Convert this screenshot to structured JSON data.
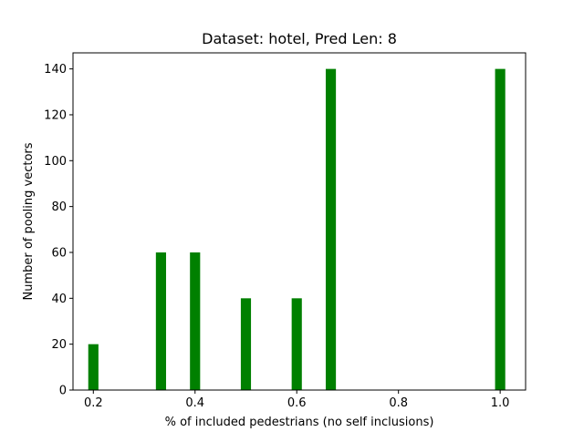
{
  "chart_data": {
    "type": "bar",
    "title": "Dataset: hotel, Pred Len: 8",
    "xlabel": "% of included pedestrians (no self inclusions)",
    "ylabel": "Number of pooling vectors",
    "x": [
      0.2,
      0.333,
      0.4,
      0.5,
      0.6,
      0.667,
      1.0
    ],
    "values": [
      20,
      60,
      60,
      40,
      40,
      140,
      140
    ],
    "bar_width": 0.02,
    "xlim": [
      0.16,
      1.05
    ],
    "ylim": [
      0,
      147
    ],
    "xticks": [
      0.2,
      0.4,
      0.6,
      0.8,
      1.0
    ],
    "xtick_labels": [
      "0.2",
      "0.4",
      "0.6",
      "0.8",
      "1.0"
    ],
    "yticks": [
      0,
      20,
      40,
      60,
      80,
      100,
      120,
      140
    ],
    "ytick_labels": [
      "0",
      "20",
      "40",
      "60",
      "80",
      "100",
      "120",
      "140"
    ],
    "bar_color": "#008000",
    "grid": false,
    "legend": null
  }
}
